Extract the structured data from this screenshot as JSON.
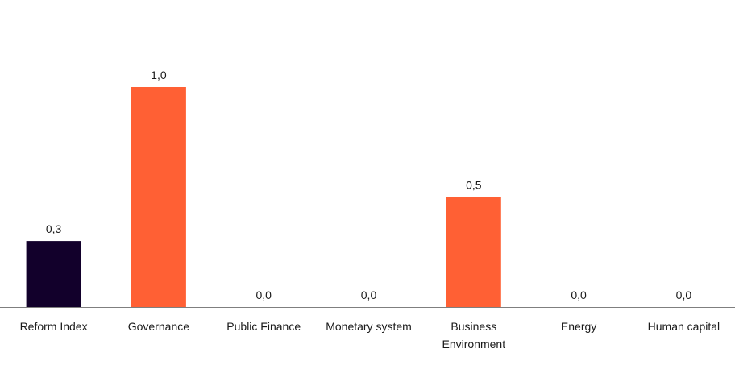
{
  "chart_data": {
    "type": "bar",
    "title": "",
    "xlabel": "",
    "ylabel": "",
    "categories": [
      [
        "Reform Index"
      ],
      [
        "Governance"
      ],
      [
        "Public Finance"
      ],
      [
        "Monetary system"
      ],
      [
        "Business",
        "Environment"
      ],
      [
        "Energy"
      ],
      [
        "Human capital"
      ]
    ],
    "values": [
      0.3,
      1.0,
      0.0,
      0.0,
      0.5,
      0.0,
      0.0
    ],
    "value_labels": [
      "0,3",
      "1,0",
      "0,0",
      "0,0",
      "0,5",
      "0,0",
      "0,0"
    ],
    "bar_colors": [
      "#12002b",
      "#ff6034",
      "#ff6034",
      "#ff6034",
      "#ff6034",
      "#ff6034",
      "#ff6034"
    ],
    "ylim": [
      0,
      1.0
    ],
    "grid": false,
    "legend": "none",
    "axis_color": "#7f7f7f"
  }
}
